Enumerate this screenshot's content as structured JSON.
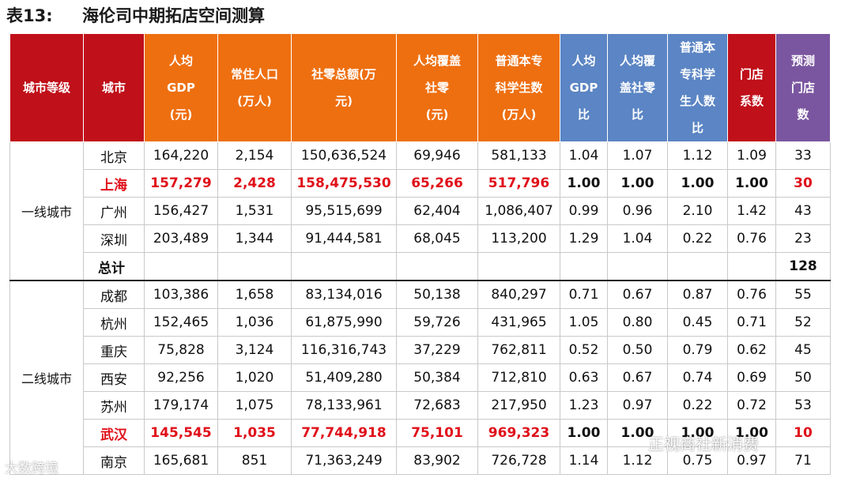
{
  "title": {
    "number": "表13:",
    "text": "海伦司中期拓店空间测算"
  },
  "headers": [
    {
      "lines": [
        "城市等级"
      ],
      "color": "red"
    },
    {
      "lines": [
        "城市"
      ],
      "color": "red"
    },
    {
      "lines": [
        "人均",
        "GDP",
        "(元)"
      ],
      "color": "orange"
    },
    {
      "lines": [
        "常住人口",
        "(万人)"
      ],
      "color": "orange"
    },
    {
      "lines": [
        "社零总额(万",
        "元)"
      ],
      "color": "orange"
    },
    {
      "lines": [
        "人均覆盖",
        "社零",
        "(元)"
      ],
      "color": "orange"
    },
    {
      "lines": [
        "普通本专",
        "科学生数",
        "(万人)"
      ],
      "color": "orange"
    },
    {
      "lines": [
        "人均",
        "GDP",
        "比"
      ],
      "color": "blue"
    },
    {
      "lines": [
        "人均覆",
        "盖社零",
        "比"
      ],
      "color": "blue"
    },
    {
      "lines": [
        "普通本",
        "专科学",
        "生人数",
        "比"
      ],
      "color": "blue"
    },
    {
      "lines": [
        "门店",
        "系数"
      ],
      "color": "red"
    },
    {
      "lines": [
        "预测",
        "门店",
        "数"
      ],
      "color": "purple"
    }
  ],
  "groups": [
    {
      "tier": "一线城市",
      "rows": [
        {
          "city": "北京",
          "values": [
            "164,220",
            "2,154",
            "150,636,524",
            "69,946",
            "581,133",
            "1.04",
            "1.07",
            "1.12",
            "1.09",
            "33"
          ],
          "highlight": false
        },
        {
          "city": "上海",
          "values": [
            "157,279",
            "2,428",
            "158,475,530",
            "65,266",
            "517,796",
            "1.00",
            "1.00",
            "1.00",
            "1.00",
            "30"
          ],
          "highlight": true
        },
        {
          "city": "广州",
          "values": [
            "156,427",
            "1,531",
            "95,515,699",
            "62,404",
            "1,086,407",
            "0.99",
            "0.96",
            "2.10",
            "1.42",
            "43"
          ],
          "highlight": false
        },
        {
          "city": "深圳",
          "values": [
            "203,489",
            "1,344",
            "91,444,581",
            "68,045",
            "113,200",
            "1.29",
            "1.04",
            "0.22",
            "0.76",
            "23"
          ],
          "highlight": false
        },
        {
          "city": "总计",
          "values": [
            "",
            "",
            "",
            "",
            "",
            "",
            "",
            "",
            "",
            "128"
          ],
          "highlight": false,
          "total": true
        }
      ]
    },
    {
      "tier": "二线城市",
      "rows": [
        {
          "city": "成都",
          "values": [
            "103,386",
            "1,658",
            "83,134,016",
            "50,138",
            "840,297",
            "0.71",
            "0.67",
            "0.87",
            "0.76",
            "55"
          ],
          "highlight": false
        },
        {
          "city": "杭州",
          "values": [
            "152,465",
            "1,036",
            "61,875,990",
            "59,726",
            "431,965",
            "1.05",
            "0.80",
            "0.45",
            "0.71",
            "52"
          ],
          "highlight": false
        },
        {
          "city": "重庆",
          "values": [
            "75,828",
            "3,124",
            "116,316,743",
            "37,229",
            "762,811",
            "0.52",
            "0.50",
            "0.79",
            "0.62",
            "45"
          ],
          "highlight": false
        },
        {
          "city": "西安",
          "values": [
            "92,256",
            "1,020",
            "51,409,280",
            "50,384",
            "712,810",
            "0.63",
            "0.67",
            "0.74",
            "0.69",
            "50"
          ],
          "highlight": false
        },
        {
          "city": "苏州",
          "values": [
            "179,174",
            "1,075",
            "78,133,961",
            "72,683",
            "217,950",
            "1.23",
            "0.97",
            "0.22",
            "0.72",
            "53"
          ],
          "highlight": false
        },
        {
          "city": "武汉",
          "values": [
            "145,545",
            "1,035",
            "77,744,918",
            "75,101",
            "969,323",
            "1.00",
            "1.00",
            "1.00",
            "1.00",
            "10"
          ],
          "highlight": true
        },
        {
          "city": "南京",
          "values": [
            "165,681",
            "851",
            "71,363,249",
            "83,902",
            "726,728",
            "1.14",
            "1.12",
            "0.75",
            "0.97",
            "71"
          ],
          "highlight": false
        }
      ]
    }
  ],
  "watermarks": {
    "left": "大数跨境",
    "right": "正视商社新消费"
  }
}
